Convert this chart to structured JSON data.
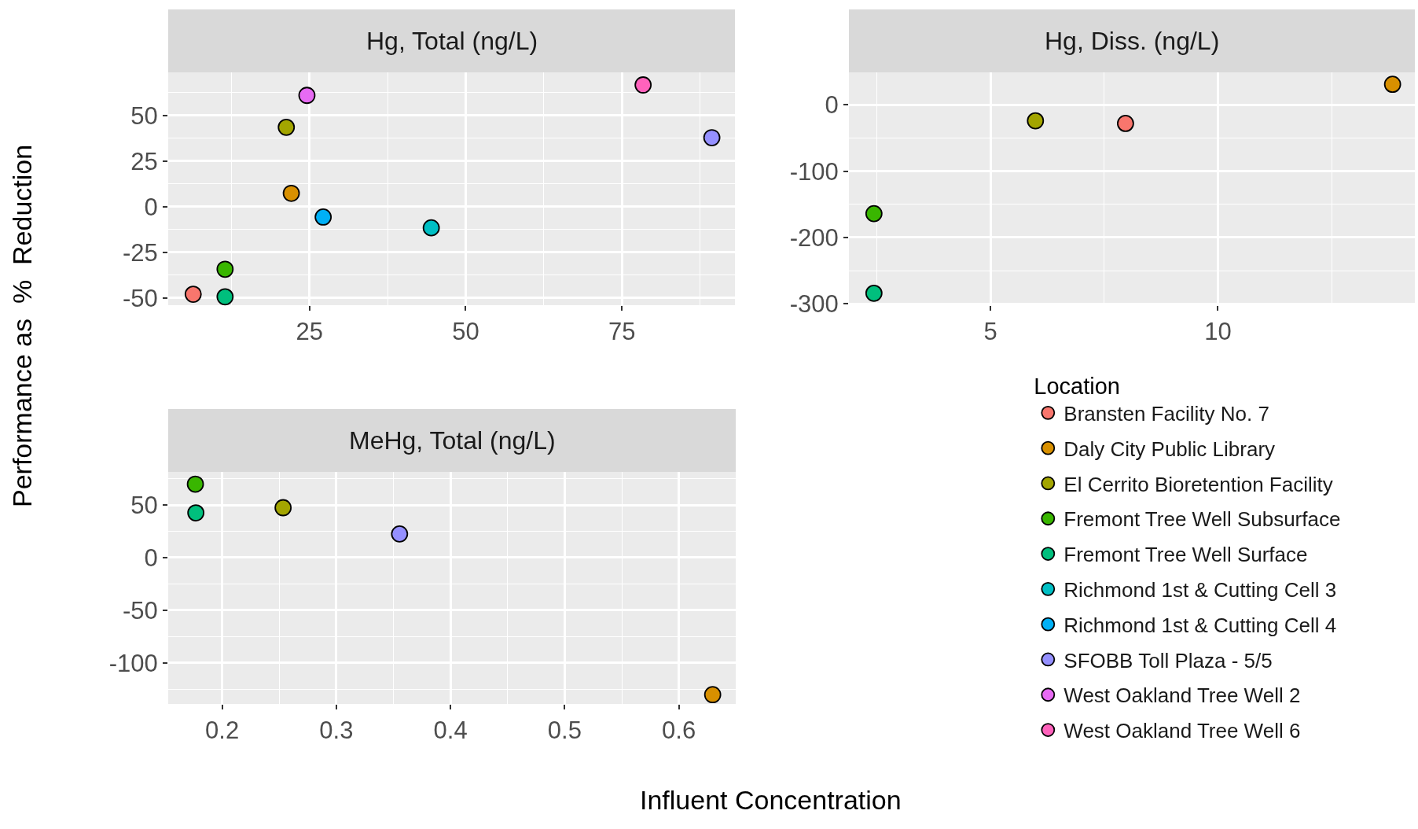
{
  "chart_data": [
    {
      "type": "scatter",
      "title": "Hg, Total (ng/L)",
      "ylabel": "Performance as  %  Reduction",
      "legend_title": "Location",
      "legend": "bottom right",
      "grid": true,
      "marker": "circle",
      "xlim": [
        2.4,
        93.1
      ],
      "ylim": [
        -54,
        73.6
      ],
      "xticks": [
        25,
        50,
        75
      ],
      "yticks": [
        -50,
        -25,
        0,
        25,
        50
      ],
      "series": [
        {
          "name": "Bransten Facility No. 7",
          "color": "#f8766d",
          "x": [
            6.4
          ],
          "values": [
            -48
          ]
        },
        {
          "name": "Daly City Public Library",
          "color": "#d89000",
          "x": [
            22.1
          ],
          "values": [
            7.3
          ]
        },
        {
          "name": "El Cerrito Bioretention Facility",
          "color": "#a3a500",
          "x": [
            21.3
          ],
          "values": [
            43.5
          ]
        },
        {
          "name": "Fremont Tree Well Subsurface",
          "color": "#39b600",
          "x": [
            11.5
          ],
          "values": [
            -34.3
          ]
        },
        {
          "name": "Fremont Tree Well Surface",
          "color": "#00bf7d",
          "x": [
            11.5
          ],
          "values": [
            -49.4
          ]
        },
        {
          "name": "Richmond 1st & Cutting Cell 3",
          "color": "#00bfc4",
          "x": [
            44.5
          ],
          "values": [
            -11.6
          ]
        },
        {
          "name": "Richmond 1st & Cutting Cell 4",
          "color": "#00b0f6",
          "x": [
            27.2
          ],
          "values": [
            -5.7
          ]
        },
        {
          "name": "SFOBB Toll Plaza - 5/5",
          "color": "#9590ff",
          "x": [
            89.4
          ],
          "values": [
            37.8
          ]
        },
        {
          "name": "West Oakland Tree Well 2",
          "color": "#e76bf3",
          "x": [
            24.6
          ],
          "values": [
            61
          ]
        },
        {
          "name": "West Oakland Tree Well 6",
          "color": "#ff62bc",
          "x": [
            78.4
          ],
          "values": [
            66.7
          ]
        }
      ]
    },
    {
      "type": "scatter",
      "title": "Hg, Diss. (ng/L)",
      "legend": "bottom right",
      "grid": true,
      "marker": "circle",
      "xlim": [
        1.89,
        14.33
      ],
      "ylim": [
        -302,
        49
      ],
      "xticks": [
        5,
        10
      ],
      "yticks": [
        -300,
        -200,
        -100,
        0
      ],
      "series": [
        {
          "name": "Bransten Facility No. 7",
          "color": "#f8766d",
          "x": [
            7.97
          ],
          "values": [
            -28
          ]
        },
        {
          "name": "Daly City Public Library",
          "color": "#d89000",
          "x": [
            13.84
          ],
          "values": [
            31
          ]
        },
        {
          "name": "El Cerrito Bioretention Facility",
          "color": "#a3a500",
          "x": [
            5.99
          ],
          "values": [
            -24
          ]
        },
        {
          "name": "Fremont Tree Well Subsurface",
          "color": "#39b600",
          "x": [
            2.44
          ],
          "values": [
            -164
          ]
        },
        {
          "name": "Fremont Tree Well Surface",
          "color": "#00bf7d",
          "x": [
            2.44
          ],
          "values": [
            -284
          ]
        }
      ]
    },
    {
      "type": "scatter",
      "title": "MeHg, Total (ng/L)",
      "xlabel": "Influent Concentration",
      "legend": "bottom right",
      "grid": true,
      "marker": "circle",
      "xlim": [
        0.1528,
        0.6498
      ],
      "ylim": [
        -139,
        81.4
      ],
      "xticks": [
        0.2,
        0.3,
        0.4,
        0.5,
        0.6
      ],
      "yticks": [
        -100,
        -50,
        0,
        50
      ],
      "series": [
        {
          "name": "Daly City Public Library",
          "color": "#d89000",
          "x": [
            0.6296
          ],
          "values": [
            -130.2
          ]
        },
        {
          "name": "El Cerrito Bioretention Facility",
          "color": "#a3a500",
          "x": [
            0.2534
          ],
          "values": [
            47.4
          ]
        },
        {
          "name": "Fremont Tree Well Subsurface",
          "color": "#39b600",
          "x": [
            0.1766
          ],
          "values": [
            69.8
          ]
        },
        {
          "name": "Fremont Tree Well Surface",
          "color": "#00bf7d",
          "x": [
            0.177
          ],
          "values": [
            42.5
          ]
        },
        {
          "name": "SFOBB Toll Plaza - 5/5",
          "color": "#9590ff",
          "x": [
            0.3554
          ],
          "values": [
            22.5
          ]
        }
      ]
    }
  ]
}
